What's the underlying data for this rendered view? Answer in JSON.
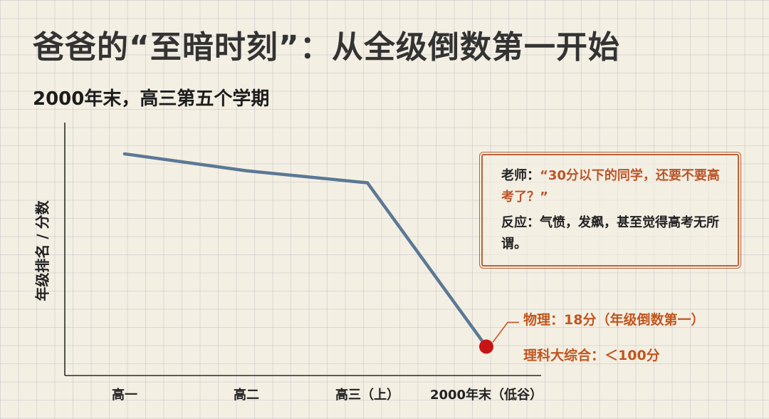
{
  "title": "爸爸的“至暗时刻”：从全级倒数第一开始",
  "subtitle": "2000年末，高三第五个学期",
  "colors": {
    "line": "#5b7895",
    "lowpoint": "#c81414",
    "accent": "#c0561f",
    "axis": "#2a2a2a"
  },
  "chart_data": {
    "type": "line",
    "ylabel": "年级排名 / 分数",
    "categories": [
      "高一",
      "高二",
      "高三（上）",
      "2000年末（低谷）"
    ],
    "values": [
      92,
      85,
      80,
      12
    ],
    "ylim": [
      0,
      105
    ],
    "grid": true,
    "highlight_point": 3
  },
  "callout": {
    "line1_prefix": "老师：",
    "line1_quote": "“30分以下的同学，还要不要高考了？”",
    "line2": "反应：气愤，发飙，甚至觉得高考无所谓。"
  },
  "annotations": {
    "physics": "物理：18分（年级倒数第一）",
    "science_total": "理科大综合：＜100分"
  }
}
